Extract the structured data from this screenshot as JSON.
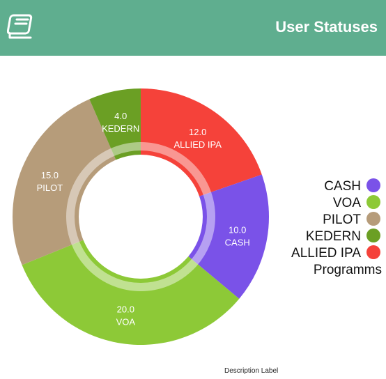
{
  "header": {
    "title": "User Statuses",
    "icon": "book-icon",
    "background_color": "#5fae8f"
  },
  "chart_data": {
    "type": "pie",
    "style": "donut",
    "start_angle_deg": -90,
    "slices": [
      {
        "label": "ALLIED IPA",
        "value": 12.0,
        "value_text": "12.0",
        "color": "#f5423a"
      },
      {
        "label": "CASH",
        "value": 10.0,
        "value_text": "10.0",
        "color": "#7a52e8"
      },
      {
        "label": "VOA",
        "value": 20.0,
        "value_text": "20.0",
        "color": "#8dc937"
      },
      {
        "label": "PILOT",
        "value": 15.0,
        "value_text": "15.0",
        "color": "#b69c7a"
      },
      {
        "label": "KEDERN",
        "value": 4.0,
        "value_text": "4.0",
        "color": "#6b9f24"
      }
    ],
    "legend": {
      "position": "right",
      "entries": [
        {
          "label": "CASH",
          "color": "#7a52e8"
        },
        {
          "label": "VOA",
          "color": "#8dc937"
        },
        {
          "label": "PILOT",
          "color": "#b69c7a"
        },
        {
          "label": "KEDERN",
          "color": "#6b9f24"
        },
        {
          "label": "ALLIED IPA",
          "color": "#f5423a"
        }
      ],
      "title": "Programms"
    },
    "description": "Description Label"
  }
}
